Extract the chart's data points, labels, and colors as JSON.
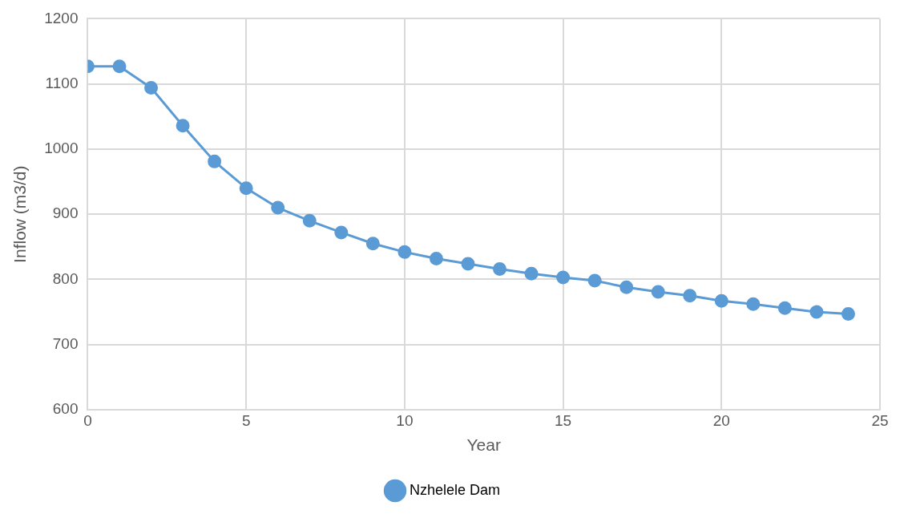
{
  "chart_data": {
    "type": "line",
    "xlabel": "Year",
    "ylabel": "Inflow (m3/d)",
    "x": [
      0,
      1,
      2,
      3,
      4,
      5,
      6,
      7,
      8,
      9,
      10,
      11,
      12,
      13,
      14,
      15,
      16,
      17,
      18,
      19,
      20,
      21,
      22,
      23,
      24
    ],
    "series": [
      {
        "name": "Nzhelele Dam",
        "color": "#5b9bd5",
        "values": [
          1127,
          1127,
          1094,
          1036,
          981,
          940,
          910,
          890,
          872,
          855,
          842,
          832,
          824,
          816,
          809,
          803,
          798,
          788,
          781,
          775,
          767,
          762,
          756,
          750,
          747
        ]
      }
    ],
    "xlim": [
      0,
      25
    ],
    "xticks": [
      0,
      5,
      10,
      15,
      20,
      25
    ],
    "ylim": [
      600,
      1200
    ],
    "yticks": [
      600,
      700,
      800,
      900,
      1000,
      1100,
      1200
    ],
    "grid": true,
    "legend": "bottom",
    "marker": "circle",
    "line_style": "solid"
  }
}
